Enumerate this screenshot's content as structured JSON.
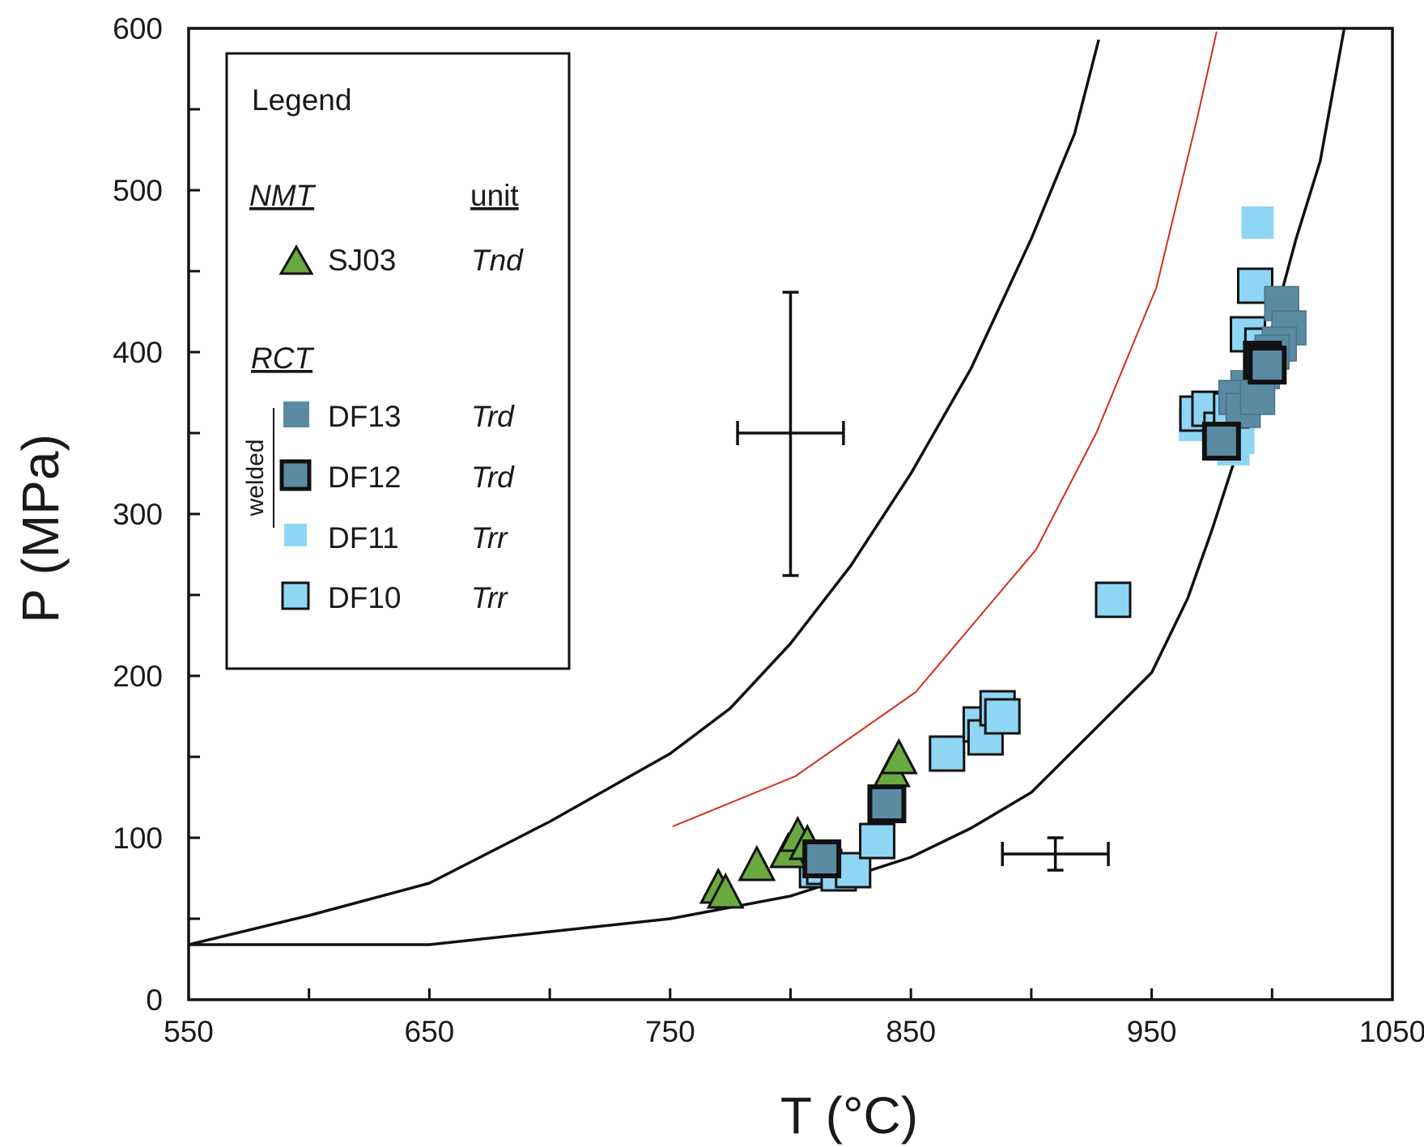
{
  "chart_data": {
    "type": "scatter",
    "xlabel": "T (°C)",
    "ylabel": "P (MPa)",
    "xlim": [
      550,
      1050
    ],
    "ylim": [
      0,
      600
    ],
    "xticks": [
      550,
      650,
      750,
      850,
      950,
      1050
    ],
    "yticks": [
      0,
      100,
      200,
      300,
      400,
      500,
      600
    ],
    "grid": false,
    "legend": {
      "title": "Legend",
      "placement": "top-left",
      "group_nmt": "NMT",
      "unit_header": "unit",
      "group_rct": "RCT",
      "welded_label": "welded",
      "entries": [
        {
          "sample": "SJ03",
          "unit": "Tnd"
        },
        {
          "sample": "DF13",
          "unit": "Trd"
        },
        {
          "sample": "DF12",
          "unit": "Trd"
        },
        {
          "sample": "DF11",
          "unit": "Trr"
        },
        {
          "sample": "DF10",
          "unit": "Trr"
        }
      ]
    },
    "colors": {
      "sj03": "#6aa840",
      "df13": "#5b8aa3",
      "df12": "#5b8aa3",
      "df11": "#8fd6f5",
      "df10": "#8fd6f5",
      "curve_black": "#111111",
      "curve_red": "#d42e1e"
    },
    "curves": [
      {
        "name": "upper-black-curve",
        "color": "black",
        "points": [
          [
            550,
            34
          ],
          [
            600,
            52
          ],
          [
            650,
            72
          ],
          [
            700,
            110
          ],
          [
            750,
            152
          ],
          [
            775,
            180
          ],
          [
            800,
            220
          ],
          [
            825,
            268
          ],
          [
            850,
            325
          ],
          [
            875,
            390
          ],
          [
            900,
            470
          ],
          [
            918,
            535
          ],
          [
            928,
            593
          ]
        ]
      },
      {
        "name": "red-curve",
        "color": "red",
        "points": [
          [
            751,
            107
          ],
          [
            802,
            138
          ],
          [
            852,
            190
          ],
          [
            902,
            278
          ],
          [
            927,
            350
          ],
          [
            952,
            440
          ],
          [
            969,
            545
          ],
          [
            977,
            598
          ]
        ]
      },
      {
        "name": "lower-black-curve",
        "color": "black",
        "points": [
          [
            550,
            34
          ],
          [
            650,
            34
          ],
          [
            700,
            42
          ],
          [
            750,
            50
          ],
          [
            800,
            64
          ],
          [
            850,
            88
          ],
          [
            875,
            106
          ],
          [
            900,
            128
          ],
          [
            925,
            165
          ],
          [
            950,
            202
          ],
          [
            965,
            248
          ],
          [
            975,
            290
          ],
          [
            987,
            345
          ],
          [
            1000,
            415
          ],
          [
            1010,
            470
          ],
          [
            1020,
            518
          ],
          [
            1030,
            600
          ]
        ]
      }
    ],
    "error_bars": [
      {
        "x": 800,
        "y": 350,
        "xerr": 22,
        "yerr_up": 87,
        "yerr_down": 88
      },
      {
        "x": 910,
        "y": 90,
        "xerr": 22,
        "yerr_up": 10,
        "yerr_down": 10
      }
    ],
    "series": [
      {
        "name": "SJ03",
        "unit": "Tnd",
        "group": "NMT",
        "marker": "triangle",
        "points": [
          [
            770,
            68
          ],
          [
            773,
            65
          ],
          [
            786,
            82
          ],
          [
            799,
            90
          ],
          [
            803,
            100
          ],
          [
            807,
            95
          ],
          [
            842,
            140
          ],
          [
            845,
            148
          ]
        ]
      },
      {
        "name": "DF13",
        "unit": "Trd",
        "group": "RCT",
        "welded": true,
        "marker": "square",
        "points": [
          [
            1004,
            430
          ],
          [
            1007,
            415
          ],
          [
            1003,
            405
          ],
          [
            1000,
            400
          ],
          [
            996,
            388
          ],
          [
            990,
            378
          ],
          [
            985,
            372
          ],
          [
            988,
            364
          ],
          [
            994,
            372
          ]
        ]
      },
      {
        "name": "DF12",
        "unit": "Trd",
        "group": "RCT",
        "welded": true,
        "marker": "square-thick",
        "points": [
          [
            813,
            87
          ],
          [
            840,
            121
          ],
          [
            979,
            345
          ],
          [
            996,
            395
          ],
          [
            998,
            392
          ]
        ]
      },
      {
        "name": "DF11",
        "unit": "Trr",
        "group": "RCT",
        "welded": true,
        "marker": "square-noborder",
        "points": [
          [
            994,
            480
          ],
          [
            968,
            355
          ],
          [
            975,
            362
          ],
          [
            984,
            340
          ],
          [
            986,
            347
          ]
        ]
      },
      {
        "name": "DF10",
        "unit": "Trr",
        "group": "RCT",
        "welded": false,
        "marker": "square",
        "points": [
          [
            811,
            80
          ],
          [
            814,
            82
          ],
          [
            820,
            78
          ],
          [
            826,
            80
          ],
          [
            836,
            98
          ],
          [
            865,
            152
          ],
          [
            879,
            170
          ],
          [
            881,
            162
          ],
          [
            886,
            180
          ],
          [
            888,
            175
          ],
          [
            934,
            247
          ],
          [
            993,
            441
          ],
          [
            990,
            411
          ],
          [
            996,
            404
          ],
          [
            969,
            362
          ],
          [
            974,
            365
          ],
          [
            979,
            352
          ],
          [
            983,
            364
          ]
        ]
      }
    ]
  }
}
